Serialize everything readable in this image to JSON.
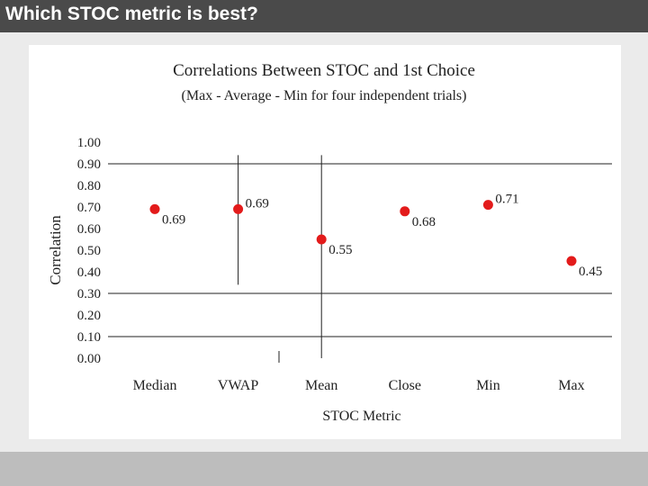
{
  "slide": {
    "title": "Which STOC metric is best?"
  },
  "colors": {
    "marker": "#e31b1b",
    "axis": "#222222",
    "title_bar": "#4a4a4a",
    "footer_bar": "#bdbdbd"
  },
  "chart_data": {
    "type": "scatter",
    "title": "Correlations Between STOC and 1st Choice",
    "subtitle": "(Max - Average - Min for four independent trials)",
    "xlabel": "STOC Metric",
    "ylabel": "Correlation",
    "categories": [
      "Median",
      "VWAP",
      "Mean",
      "Close",
      "Min",
      "Max"
    ],
    "values": [
      0.69,
      0.69,
      0.55,
      0.68,
      0.71,
      0.45
    ],
    "data_labels": [
      "0.69",
      "0.69",
      "0.55",
      "0.68",
      "0.71",
      "0.45"
    ],
    "y_ticks": [
      "1.00",
      "0.90",
      "0.80",
      "0.70",
      "0.60",
      "0.50",
      "0.40",
      "0.30",
      "0.20",
      "0.10",
      "0.00"
    ],
    "ylim": [
      0,
      1
    ],
    "gridlines": [
      0.1,
      0.3,
      0.9
    ],
    "error_bars": [
      {
        "category": "VWAP",
        "low": 0.34,
        "high": 0.94
      },
      {
        "category": "Mean",
        "low": 0.0,
        "high": 0.94
      }
    ],
    "grid": true,
    "legend": "none"
  }
}
